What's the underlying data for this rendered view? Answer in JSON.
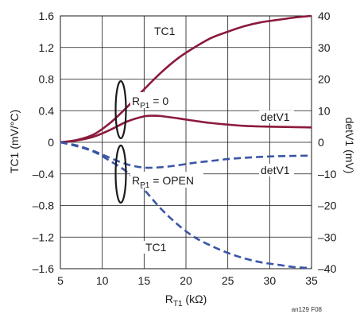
{
  "chart_data": {
    "type": "line",
    "x_label": {
      "main": "R",
      "sub": "T1",
      "tail": " (kΩ)"
    },
    "y_left_label": "TC1 (mV/°C)",
    "y_right_label": "detV1 (mV)",
    "x_ticks": [
      "5",
      "10",
      "15",
      "20",
      "25",
      "30",
      "35"
    ],
    "y_left_ticks": [
      "1.6",
      "1.2",
      "0.8",
      "0.4",
      "0",
      "–0.4",
      "–0.8",
      "–1.2",
      "–1.6"
    ],
    "y_right_ticks": [
      "40",
      "30",
      "20",
      "10",
      "0",
      "–10",
      "–20",
      "–30",
      "–40"
    ],
    "xlim": [
      5,
      35
    ],
    "ylim_left": [
      -1.6,
      1.6
    ],
    "ylim_right": [
      -40,
      40
    ],
    "grid": true,
    "series": [
      {
        "group": "RP1 = 0",
        "name": "TC1",
        "axis": "left",
        "style": "solid",
        "color": "#8b1a3c",
        "x": [
          5,
          7,
          9,
          11,
          13,
          15,
          17,
          19,
          21,
          23,
          25,
          27,
          29,
          31,
          33,
          35
        ],
        "y": [
          0.0,
          0.03,
          0.1,
          0.25,
          0.45,
          0.67,
          0.88,
          1.06,
          1.2,
          1.32,
          1.4,
          1.47,
          1.52,
          1.55,
          1.58,
          1.6
        ]
      },
      {
        "group": "RP1 = 0",
        "name": "detV1",
        "axis": "right",
        "style": "solid",
        "color": "#8b1a3c",
        "x": [
          5,
          7,
          9,
          11,
          13,
          15,
          16,
          17,
          19,
          21,
          23,
          25,
          27,
          29,
          31,
          33,
          35
        ],
        "y": [
          0.0,
          0.6,
          1.8,
          4.0,
          6.6,
          8.2,
          8.4,
          8.3,
          7.6,
          6.8,
          6.1,
          5.6,
          5.2,
          5.0,
          4.9,
          4.8,
          4.7
        ]
      },
      {
        "group": "RP1 = OPEN",
        "name": "detV1",
        "axis": "right",
        "style": "dashed",
        "color": "#3a56a6",
        "x": [
          5,
          7,
          9,
          11,
          13,
          15,
          17,
          19,
          21,
          23,
          25,
          27,
          29,
          31,
          33,
          35
        ],
        "y": [
          0.0,
          -1.0,
          -2.8,
          -5.0,
          -7.0,
          -8.0,
          -7.9,
          -7.3,
          -6.5,
          -5.9,
          -5.3,
          -4.9,
          -4.6,
          -4.4,
          -4.3,
          -4.2
        ]
      },
      {
        "group": "RP1 = OPEN",
        "name": "TC1",
        "axis": "left",
        "style": "dashed",
        "color": "#3a56a6",
        "x": [
          5,
          7,
          9,
          11,
          13,
          15,
          17,
          19,
          21,
          23,
          25,
          27,
          29,
          31,
          33,
          35
        ],
        "y": [
          0.0,
          -0.05,
          -0.12,
          -0.24,
          -0.38,
          -0.6,
          -0.84,
          -1.04,
          -1.2,
          -1.31,
          -1.4,
          -1.47,
          -1.52,
          -1.55,
          -1.58,
          -1.59
        ]
      }
    ],
    "annotations": [
      {
        "id": "tc1_top",
        "text": "TC1"
      },
      {
        "id": "detv1_solid",
        "text": "detV1"
      },
      {
        "id": "detv1_dashed",
        "text": "detV1"
      },
      {
        "id": "tc1_bottom",
        "text": "TC1"
      }
    ],
    "ellipse_labels": [
      {
        "id": "rp1_zero",
        "main": "R",
        "sub": "P1",
        "tail": " = 0"
      },
      {
        "id": "rp1_open",
        "main": "R",
        "sub": "P1",
        "tail": " = OPEN"
      }
    ],
    "figure_id": "an129 F08"
  }
}
